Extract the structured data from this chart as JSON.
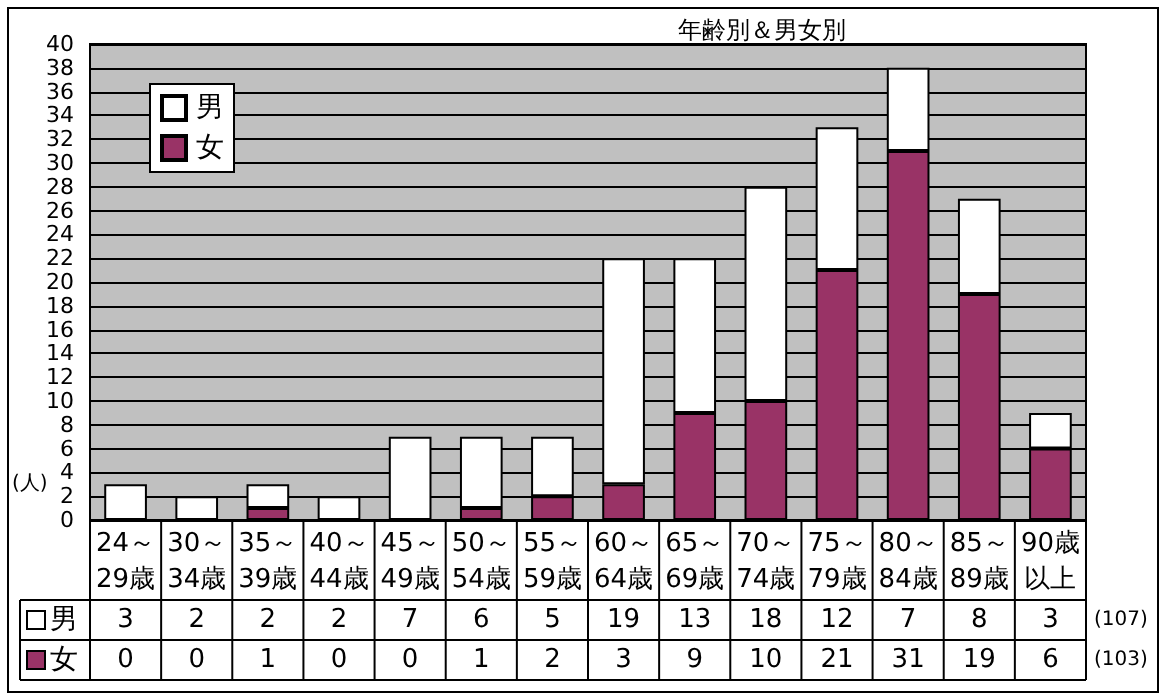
{
  "chart_data": {
    "type": "bar",
    "title": "年齢別＆男女別",
    "ylabel": "(人)",
    "categories": [
      "24～29歳",
      "30～34歳",
      "35～39歳",
      "40～44歳",
      "45～49歳",
      "50～54歳",
      "55～59歳",
      "60～64歳",
      "65～69歳",
      "70～74歳",
      "75～79歳",
      "80～84歳",
      "85～89歳",
      "90歳以上"
    ],
    "series": [
      {
        "name": "女",
        "color": "#993366",
        "values": [
          0,
          0,
          1,
          0,
          0,
          1,
          2,
          3,
          9,
          10,
          21,
          31,
          19,
          6
        ]
      },
      {
        "name": "男",
        "color": "#ffffff",
        "values": [
          3,
          2,
          2,
          2,
          7,
          6,
          5,
          19,
          13,
          18,
          12,
          7,
          8,
          3
        ]
      }
    ],
    "stacked": true,
    "ylim": [
      0,
      40
    ],
    "yticks": [
      0,
      2,
      4,
      6,
      8,
      10,
      12,
      14,
      16,
      18,
      20,
      22,
      24,
      26,
      28,
      30,
      32,
      34,
      36,
      38,
      40
    ],
    "grid": "y",
    "legend": "top left",
    "data_labels": true,
    "annotations": [
      "(107)",
      "(103)"
    ]
  }
}
